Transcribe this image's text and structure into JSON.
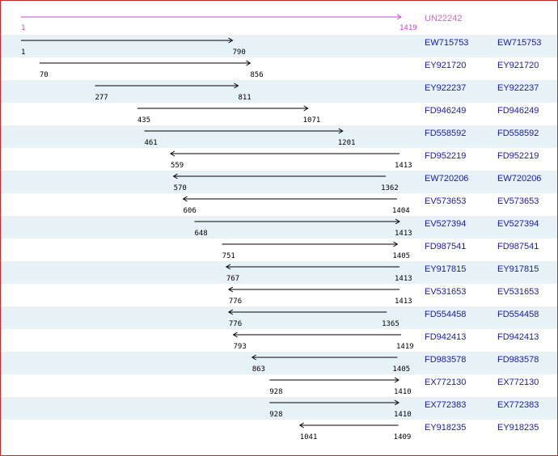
{
  "reference": {
    "accession": "UN22242",
    "start": 1,
    "end": 1419,
    "color": "#cc44cc"
  },
  "sequence_color": "#1a1aa6",
  "row_shade_color": "#e6f2f5",
  "border_color": "#c8282c",
  "alignments": [
    {
      "accession": "EW715753",
      "link": "EW715753",
      "start": 1,
      "end": 790,
      "direction": "forward"
    },
    {
      "accession": "EY921720",
      "link": "EY921720",
      "start": 70,
      "end": 856,
      "direction": "forward"
    },
    {
      "accession": "EY922237",
      "link": "EY922237",
      "start": 277,
      "end": 811,
      "direction": "forward"
    },
    {
      "accession": "FD946249",
      "link": "FD946249",
      "start": 435,
      "end": 1071,
      "direction": "forward"
    },
    {
      "accession": "FD558592",
      "link": "FD558592",
      "start": 461,
      "end": 1201,
      "direction": "forward"
    },
    {
      "accession": "FD952219",
      "link": "FD952219",
      "start": 559,
      "end": 1413,
      "direction": "reverse"
    },
    {
      "accession": "EW720206",
      "link": "EW720206",
      "start": 570,
      "end": 1362,
      "direction": "reverse"
    },
    {
      "accession": "EV573653",
      "link": "EV573653",
      "start": 606,
      "end": 1404,
      "direction": "reverse"
    },
    {
      "accession": "EV527394",
      "link": "EV527394",
      "start": 648,
      "end": 1413,
      "direction": "forward"
    },
    {
      "accession": "FD987541",
      "link": "FD987541",
      "start": 751,
      "end": 1405,
      "direction": "forward"
    },
    {
      "accession": "EY917815",
      "link": "EY917815",
      "start": 767,
      "end": 1413,
      "direction": "reverse"
    },
    {
      "accession": "EV531653",
      "link": "EV531653",
      "start": 776,
      "end": 1413,
      "direction": "reverse"
    },
    {
      "accession": "FD554458",
      "link": "FD554458",
      "start": 776,
      "end": 1365,
      "direction": "reverse"
    },
    {
      "accession": "FD942413",
      "link": "FD942413",
      "start": 793,
      "end": 1419,
      "direction": "reverse"
    },
    {
      "accession": "FD983578",
      "link": "FD983578",
      "start": 863,
      "end": 1405,
      "direction": "reverse"
    },
    {
      "accession": "EX772130",
      "link": "EX772130",
      "start": 928,
      "end": 1410,
      "direction": "forward"
    },
    {
      "accession": "EX772383",
      "link": "EX772383",
      "start": 928,
      "end": 1410,
      "direction": "forward"
    },
    {
      "accession": "EY918235",
      "link": "EY918235",
      "start": 1041,
      "end": 1409,
      "direction": "reverse"
    }
  ]
}
